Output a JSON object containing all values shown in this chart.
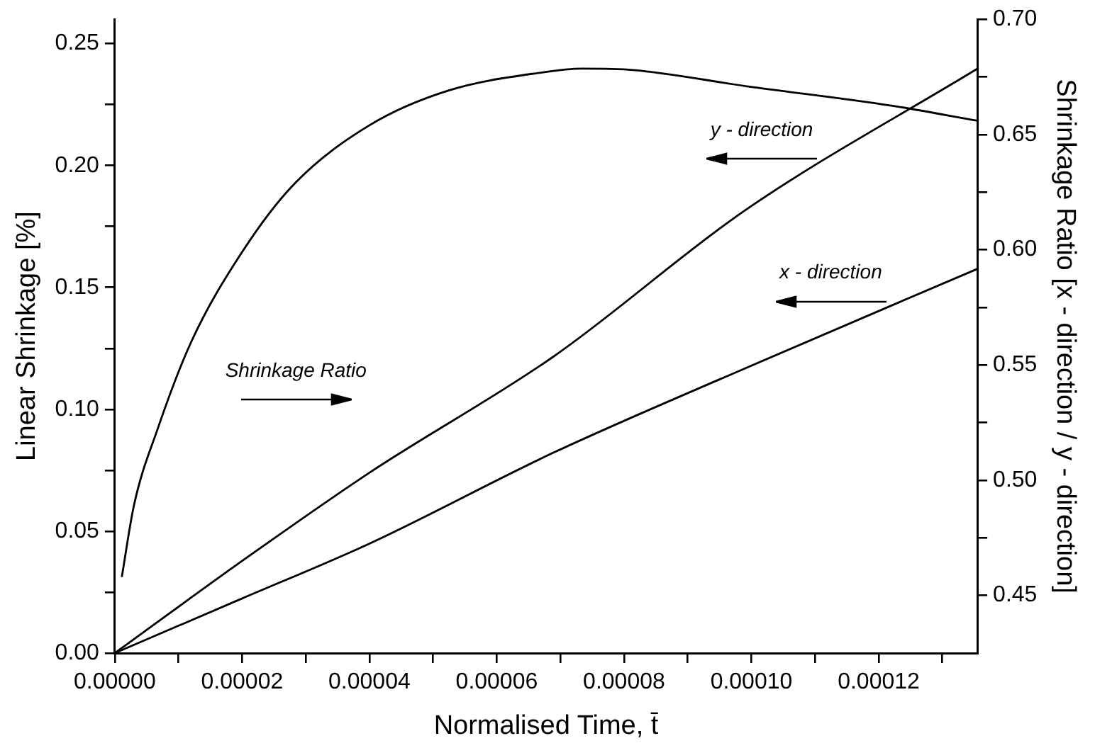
{
  "chart_data": {
    "type": "line",
    "xlabel": "Normalised Time, t̄",
    "ylabel": "Linear Shrinkage [%]",
    "y2label": "Shrinkage Ratio [x - direction / y - direction]",
    "xlim": [
      0,
      0.0001355
    ],
    "xticks": [
      {
        "value": 0,
        "label": "0.00000"
      },
      {
        "value": 1e-05,
        "label": null
      },
      {
        "value": 2e-05,
        "label": "0.00002"
      },
      {
        "value": 3e-05,
        "label": null
      },
      {
        "value": 4e-05,
        "label": "0.00004"
      },
      {
        "value": 5e-05,
        "label": null
      },
      {
        "value": 6e-05,
        "label": "0.00006"
      },
      {
        "value": 7e-05,
        "label": null
      },
      {
        "value": 8e-05,
        "label": "0.00008"
      },
      {
        "value": 9e-05,
        "label": null
      },
      {
        "value": 0.0001,
        "label": "0.00010"
      },
      {
        "value": 0.00011,
        "label": null
      },
      {
        "value": 0.00012,
        "label": "0.00012"
      },
      {
        "value": 0.00013,
        "label": null
      }
    ],
    "ylim": [
      0,
      0.26
    ],
    "yticks": [
      {
        "value": 0,
        "label": "0.00"
      },
      {
        "value": 0.025,
        "label": null
      },
      {
        "value": 0.05,
        "label": "0.05"
      },
      {
        "value": 0.075,
        "label": null
      },
      {
        "value": 0.1,
        "label": "0.10"
      },
      {
        "value": 0.125,
        "label": null
      },
      {
        "value": 0.15,
        "label": "0.15"
      },
      {
        "value": 0.175,
        "label": null
      },
      {
        "value": 0.2,
        "label": "0.20"
      },
      {
        "value": 0.225,
        "label": null
      },
      {
        "value": 0.25,
        "label": "0.25"
      }
    ],
    "y2lim": [
      0.425,
      0.7
    ],
    "y2ticks": [
      {
        "value": 0.45,
        "label": "0.45"
      },
      {
        "value": 0.475,
        "label": null
      },
      {
        "value": 0.5,
        "label": "0.50"
      },
      {
        "value": 0.525,
        "label": null
      },
      {
        "value": 0.55,
        "label": "0.55"
      },
      {
        "value": 0.575,
        "label": null
      },
      {
        "value": 0.6,
        "label": "0.60"
      },
      {
        "value": 0.625,
        "label": null
      },
      {
        "value": 0.65,
        "label": "0.65"
      },
      {
        "value": 0.675,
        "label": null
      },
      {
        "value": 0.7,
        "label": "0.70"
      }
    ],
    "series": [
      {
        "color": "#000000",
        "x": [
          0,
          2e-05,
          4e-05,
          6.89e-05,
          9.91e-05,
          0.0001355
        ],
        "values": [
          0,
          0.0378,
          0.074,
          0.1216,
          0.1818,
          0.2397
        ]
      },
      {
        "color": "#000000",
        "x": [
          0,
          2e-05,
          4e-05,
          6.89e-05,
          9.91e-05,
          0.0001355
        ],
        "values": [
          0,
          0.0224,
          0.0449,
          0.0822,
          0.1169,
          0.1576
        ]
      },
      {
        "color": "#000000",
        "axis": "y2",
        "x": [
          1.1e-06,
          3e-06,
          6.7e-06,
          1.2e-05,
          2e-05,
          2.8e-05,
          4e-05,
          5.23e-05,
          6.73e-05,
          7.34e-05,
          8.14e-05,
          9.91e-05,
          0.0001218,
          0.0001355
        ],
        "values": [
          0.458,
          0.489,
          0.522,
          0.56,
          0.599,
          0.628,
          0.654,
          0.669,
          0.677,
          0.6786,
          0.678,
          0.671,
          0.6626,
          0.656
        ]
      }
    ],
    "annotations": [
      "y - direction",
      "x - direction",
      "Shrinkage Ratio"
    ],
    "grid": false,
    "legend": false,
    "marker": "none",
    "line_style": "solid"
  }
}
